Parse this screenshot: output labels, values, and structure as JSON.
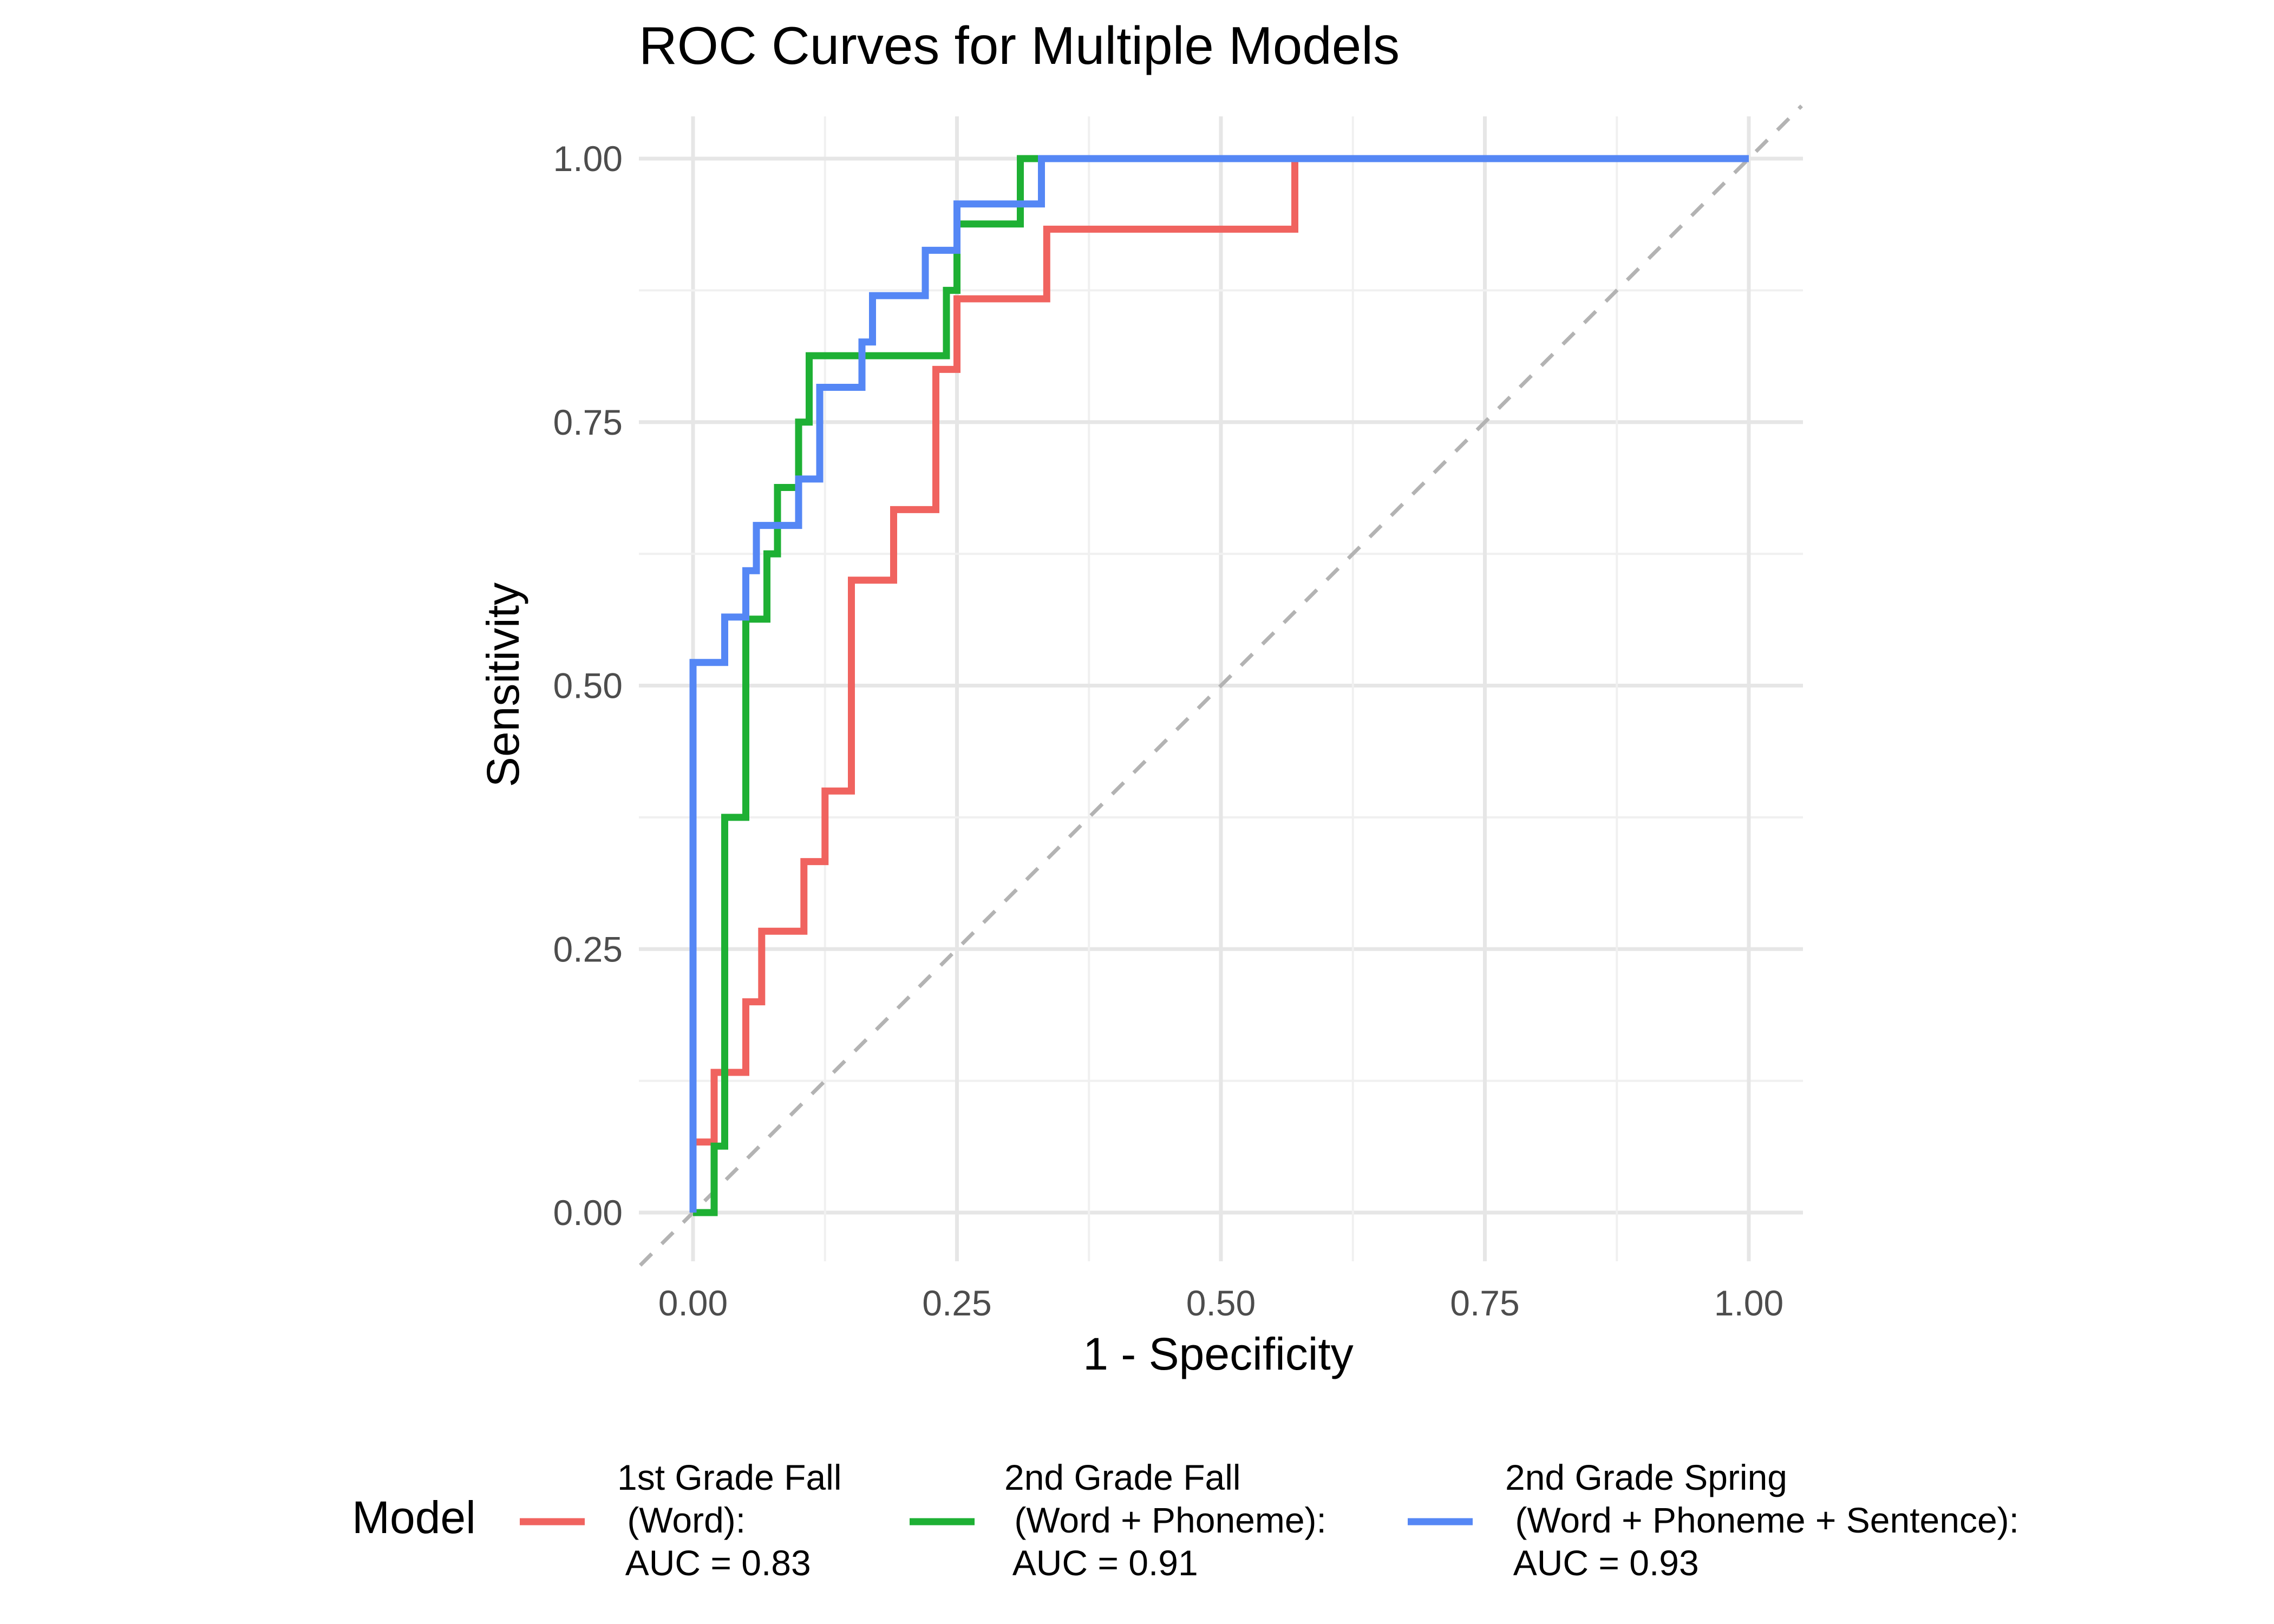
{
  "chart_data": {
    "type": "line",
    "title": "ROC Curves for Multiple Models",
    "xlabel": "1 - Specificity",
    "ylabel": "Sensitivity",
    "xlim": [
      0,
      1
    ],
    "ylim": [
      0,
      1
    ],
    "x_ticks": [
      "0.00",
      "0.25",
      "0.50",
      "0.75",
      "1.00"
    ],
    "y_ticks": [
      "0.00",
      "0.25",
      "0.50",
      "0.75",
      "1.00"
    ],
    "grid": true,
    "reference_line": {
      "style": "dashed",
      "color": "#b3b3b3",
      "from": [
        0,
        0
      ],
      "to": [
        1,
        1
      ]
    },
    "legend": {
      "title": "Model",
      "placement": "bottom"
    },
    "series": [
      {
        "name": "1st Grade Fall (Word): AUC = 0.83",
        "label_lines": [
          "1st Grade Fall",
          " (Word):",
          " AUC = 0.83"
        ],
        "color": "#F0635F",
        "points": [
          [
            0.0,
            0.0
          ],
          [
            0.0,
            0.067
          ],
          [
            0.02,
            0.067
          ],
          [
            0.02,
            0.133
          ],
          [
            0.05,
            0.133
          ],
          [
            0.05,
            0.2
          ],
          [
            0.065,
            0.2
          ],
          [
            0.065,
            0.267
          ],
          [
            0.105,
            0.267
          ],
          [
            0.105,
            0.333
          ],
          [
            0.125,
            0.333
          ],
          [
            0.125,
            0.4
          ],
          [
            0.15,
            0.4
          ],
          [
            0.15,
            0.6
          ],
          [
            0.19,
            0.6
          ],
          [
            0.19,
            0.667
          ],
          [
            0.23,
            0.667
          ],
          [
            0.23,
            0.8
          ],
          [
            0.25,
            0.8
          ],
          [
            0.25,
            0.867
          ],
          [
            0.335,
            0.867
          ],
          [
            0.335,
            0.933
          ],
          [
            0.57,
            0.933
          ],
          [
            0.57,
            1.0
          ],
          [
            1.0,
            1.0
          ]
        ]
      },
      {
        "name": "2nd Grade Fall (Word + Phoneme): AUC = 0.91",
        "label_lines": [
          "2nd Grade Fall",
          " (Word + Phoneme):",
          " AUC = 0.91"
        ],
        "color": "#1EB034",
        "points": [
          [
            0.0,
            0.0
          ],
          [
            0.0,
            0.0
          ],
          [
            0.02,
            0.0
          ],
          [
            0.02,
            0.063
          ],
          [
            0.03,
            0.063
          ],
          [
            0.03,
            0.375
          ],
          [
            0.05,
            0.375
          ],
          [
            0.05,
            0.563
          ],
          [
            0.07,
            0.563
          ],
          [
            0.07,
            0.625
          ],
          [
            0.08,
            0.625
          ],
          [
            0.08,
            0.688
          ],
          [
            0.1,
            0.688
          ],
          [
            0.1,
            0.75
          ],
          [
            0.11,
            0.75
          ],
          [
            0.11,
            0.813
          ],
          [
            0.24,
            0.813
          ],
          [
            0.24,
            0.875
          ],
          [
            0.25,
            0.875
          ],
          [
            0.25,
            0.938
          ],
          [
            0.31,
            0.938
          ],
          [
            0.31,
            1.0
          ],
          [
            1.0,
            1.0
          ]
        ]
      },
      {
        "name": "2nd Grade Spring (Word + Phoneme + Sentence): AUC = 0.93",
        "label_lines": [
          "2nd Grade Spring",
          " (Word + Phoneme + Sentence):",
          " AUC = 0.93"
        ],
        "color": "#5587F5",
        "points": [
          [
            0.0,
            0.0
          ],
          [
            0.0,
            0.522
          ],
          [
            0.03,
            0.522
          ],
          [
            0.03,
            0.565
          ],
          [
            0.05,
            0.565
          ],
          [
            0.05,
            0.609
          ],
          [
            0.06,
            0.609
          ],
          [
            0.06,
            0.652
          ],
          [
            0.1,
            0.652
          ],
          [
            0.1,
            0.696
          ],
          [
            0.12,
            0.696
          ],
          [
            0.12,
            0.783
          ],
          [
            0.16,
            0.783
          ],
          [
            0.16,
            0.826
          ],
          [
            0.17,
            0.826
          ],
          [
            0.17,
            0.87
          ],
          [
            0.22,
            0.87
          ],
          [
            0.22,
            0.913
          ],
          [
            0.25,
            0.913
          ],
          [
            0.25,
            0.957
          ],
          [
            0.33,
            0.957
          ],
          [
            0.33,
            1.0
          ],
          [
            1.0,
            1.0
          ]
        ]
      }
    ]
  }
}
